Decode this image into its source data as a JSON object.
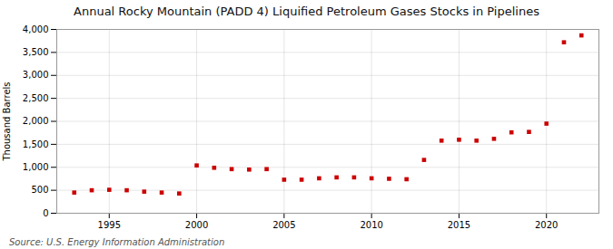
{
  "chart_data": {
    "type": "scatter",
    "title": "Annual Rocky Mountain (PADD 4) Liquified Petroleum Gases Stocks in Pipelines",
    "ylabel": "Thousand Barrels",
    "annotation": "Source: U.S. Energy Information Administration",
    "x": [
      1993,
      1994,
      1995,
      1996,
      1997,
      1998,
      1999,
      2000,
      2001,
      2002,
      2003,
      2004,
      2005,
      2006,
      2007,
      2008,
      2009,
      2010,
      2011,
      2012,
      2013,
      2014,
      2015,
      2016,
      2017,
      2018,
      2019,
      2020,
      2021,
      2022
    ],
    "values": [
      450,
      500,
      510,
      500,
      470,
      450,
      430,
      1040,
      990,
      960,
      950,
      960,
      730,
      730,
      760,
      780,
      780,
      760,
      750,
      740,
      1160,
      1580,
      1600,
      1580,
      1620,
      1760,
      1770,
      1950,
      3720,
      3870
    ],
    "color": "#cc0000",
    "marker": "square",
    "xlim": [
      1992,
      2023
    ],
    "xticks": [
      1995,
      2000,
      2005,
      2010,
      2015,
      2020
    ],
    "ylim": [
      0,
      4000
    ],
    "yticks": [
      0,
      500,
      {
        "value": 1000,
        "label": "1,000"
      },
      {
        "value": 1500,
        "label": "1,500"
      },
      {
        "value": 2000,
        "label": "2,000"
      },
      {
        "value": 2500,
        "label": "2,500"
      },
      {
        "value": 3000,
        "label": "3,000"
      },
      {
        "value": 3500,
        "label": "3,500"
      },
      {
        "value": 4000,
        "label": "4,000"
      }
    ],
    "grid": true
  }
}
